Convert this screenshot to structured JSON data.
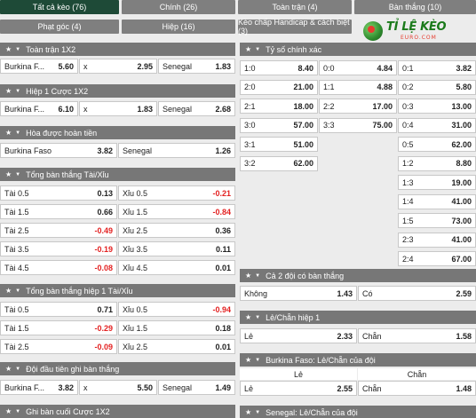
{
  "tabs_row1": [
    "Tất cả kèo (76)",
    "Chính (26)",
    "Toàn trận (4)",
    "Bàn thắng (10)"
  ],
  "tabs_row2": [
    "Phạt góc (4)",
    "Hiệp (16)",
    "Kèo chấp Handicap & cách biệt (3)"
  ],
  "logo": {
    "main": "TỈ LỆ KÈO",
    "sub": "EURO.COM"
  },
  "left": {
    "toan_tran": {
      "title": "Toàn trận 1X2",
      "row": [
        {
          "l": "Burkina F...",
          "v": "5.60"
        },
        {
          "l": "x",
          "v": "2.95"
        },
        {
          "l": "Senegal",
          "v": "1.83"
        }
      ]
    },
    "hiep1": {
      "title": "Hiệp 1 Cược 1X2",
      "row": [
        {
          "l": "Burkina F...",
          "v": "6.10"
        },
        {
          "l": "x",
          "v": "1.83"
        },
        {
          "l": "Senegal",
          "v": "2.68"
        }
      ]
    },
    "hoa": {
      "title": "Hòa được hoàn tiền",
      "row": [
        {
          "l": "Burkina Faso",
          "v": "3.82"
        },
        {
          "l": "Senegal",
          "v": "1.26"
        }
      ]
    },
    "tong": {
      "title": "Tổng bàn thắng Tài/Xỉu",
      "rows": [
        [
          {
            "l": "Tài 0.5",
            "v": "0.13"
          },
          {
            "l": "Xỉu 0.5",
            "v": "-0.21"
          }
        ],
        [
          {
            "l": "Tài 1.5",
            "v": "0.66"
          },
          {
            "l": "Xỉu 1.5",
            "v": "-0.84"
          }
        ],
        [
          {
            "l": "Tài 2.5",
            "v": "-0.49"
          },
          {
            "l": "Xỉu 2.5",
            "v": "0.36"
          }
        ],
        [
          {
            "l": "Tài 3.5",
            "v": "-0.19"
          },
          {
            "l": "Xỉu 3.5",
            "v": "0.11"
          }
        ],
        [
          {
            "l": "Tài 4.5",
            "v": "-0.08"
          },
          {
            "l": "Xỉu 4.5",
            "v": "0.01"
          }
        ]
      ]
    },
    "tong_h1": {
      "title": "Tổng bàn thắng hiệp 1 Tài/Xỉu",
      "rows": [
        [
          {
            "l": "Tài 0.5",
            "v": "0.71"
          },
          {
            "l": "Xỉu 0.5",
            "v": "-0.94"
          }
        ],
        [
          {
            "l": "Tài 1.5",
            "v": "-0.29"
          },
          {
            "l": "Xỉu 1.5",
            "v": "0.18"
          }
        ],
        [
          {
            "l": "Tài 2.5",
            "v": "-0.09"
          },
          {
            "l": "Xỉu 2.5",
            "v": "0.01"
          }
        ]
      ]
    },
    "dau_tien": {
      "title": "Đội đầu tiên ghi bàn thắng",
      "row": [
        {
          "l": "Burkina F...",
          "v": "3.82"
        },
        {
          "l": "x",
          "v": "5.50"
        },
        {
          "l": "Senegal",
          "v": "1.49"
        }
      ]
    },
    "cuoi": {
      "title": "Ghi bàn cuối Cược 1X2"
    }
  },
  "right": {
    "ty_so": {
      "title": "Tỷ số chính xác",
      "col1": [
        {
          "l": "1:0",
          "v": "8.40"
        },
        {
          "l": "2:0",
          "v": "21.00"
        },
        {
          "l": "2:1",
          "v": "18.00"
        },
        {
          "l": "3:0",
          "v": "57.00"
        },
        {
          "l": "3:1",
          "v": "51.00"
        },
        {
          "l": "3:2",
          "v": "62.00"
        }
      ],
      "col2": [
        {
          "l": "0:0",
          "v": "4.84"
        },
        {
          "l": "1:1",
          "v": "4.88"
        },
        {
          "l": "2:2",
          "v": "17.00"
        },
        {
          "l": "3:3",
          "v": "75.00"
        }
      ],
      "col3": [
        {
          "l": "0:1",
          "v": "3.82"
        },
        {
          "l": "0:2",
          "v": "5.80"
        },
        {
          "l": "0:3",
          "v": "13.00"
        },
        {
          "l": "0:4",
          "v": "31.00"
        },
        {
          "l": "0:5",
          "v": "62.00"
        },
        {
          "l": "1:2",
          "v": "8.80"
        },
        {
          "l": "1:3",
          "v": "19.00"
        },
        {
          "l": "1:4",
          "v": "41.00"
        },
        {
          "l": "1:5",
          "v": "73.00"
        },
        {
          "l": "2:3",
          "v": "41.00"
        },
        {
          "l": "2:4",
          "v": "67.00"
        }
      ]
    },
    "ca_hai": {
      "title": "Cả 2 đội có bàn thắng",
      "row": [
        {
          "l": "Không",
          "v": "1.43"
        },
        {
          "l": "Có",
          "v": "2.59"
        }
      ]
    },
    "le_chan": {
      "title": "Lẻ/Chẵn hiệp 1",
      "row": [
        {
          "l": "Lẻ",
          "v": "2.33"
        },
        {
          "l": "Chẵn",
          "v": "1.58"
        }
      ]
    },
    "bf_le_chan": {
      "title": "Burkina Faso: Lẻ/Chẵn của đội",
      "heads": [
        "Lẻ",
        "Chẵn"
      ],
      "row": [
        {
          "l": "Lẻ",
          "v": "2.55"
        },
        {
          "l": "Chẵn",
          "v": "1.48"
        }
      ]
    },
    "sen_le_chan": {
      "title": "Senegal: Lẻ/Chẵn của đội"
    }
  },
  "colors": {
    "active_tab": "#1e4a37",
    "tab": "#7f7f7f",
    "header": "#777777",
    "negative": "#e32121"
  }
}
